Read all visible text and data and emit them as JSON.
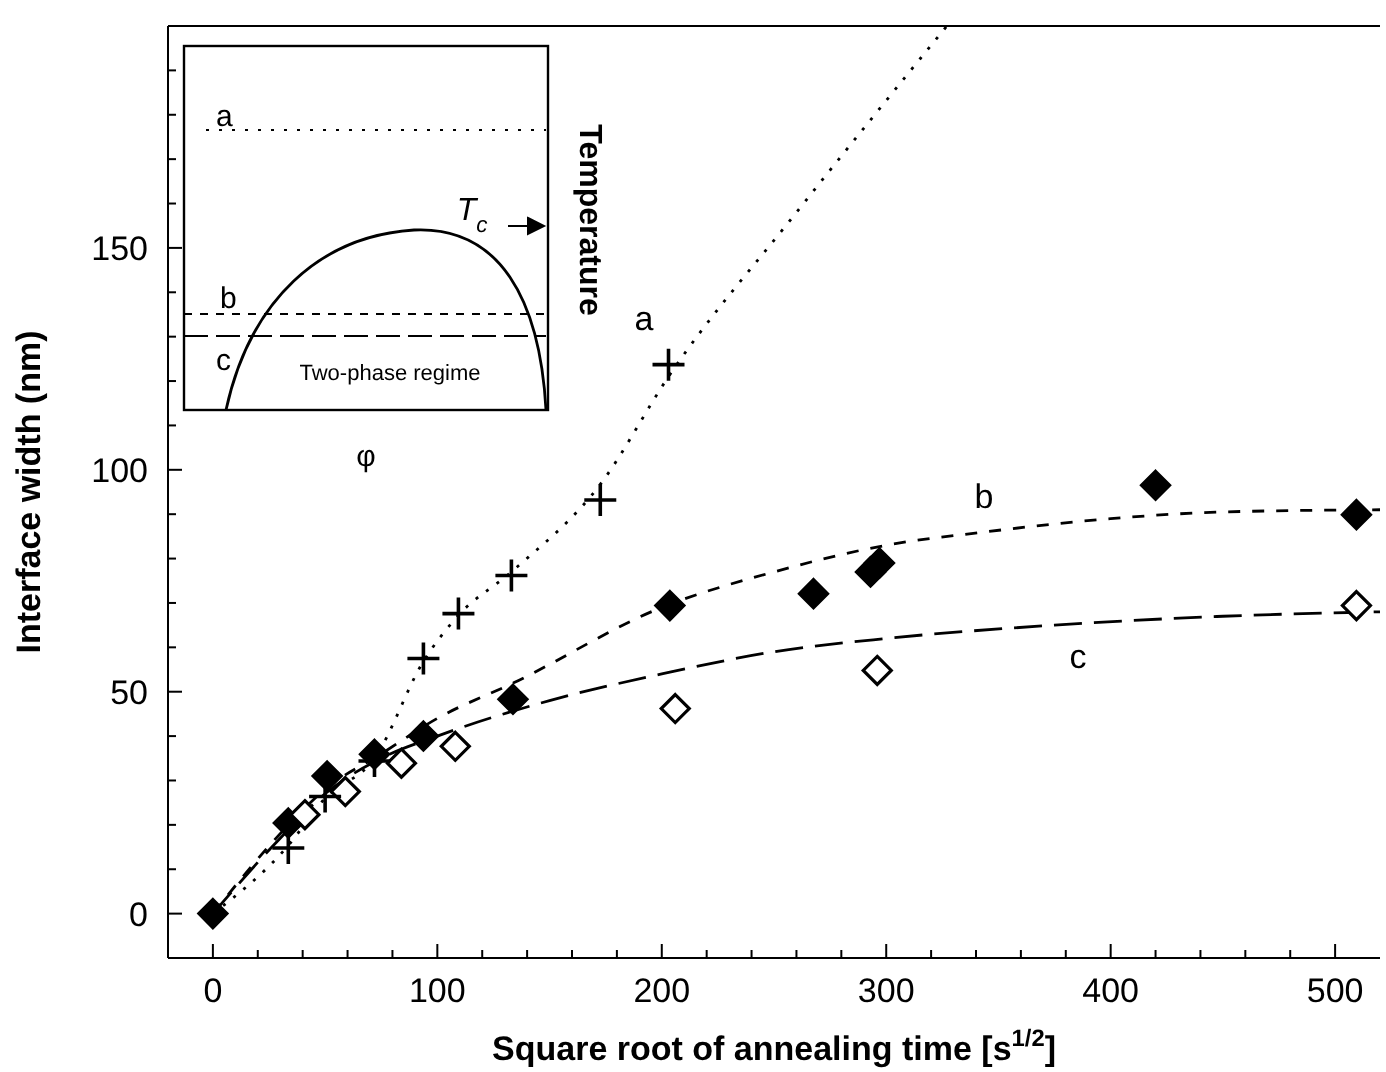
{
  "chart_data": {
    "type": "scatter",
    "xlabel": "Square root of annealing time [s$^{1/2}$]",
    "ylabel": "Interface width (nm)",
    "xlim": [
      -20,
      520
    ],
    "ylim": [
      -10,
      200
    ],
    "xticks": [
      0,
      {
        "value": 20,
        "label": null
      },
      {
        "value": 40,
        "label": null
      },
      {
        "value": 60,
        "label": null
      },
      {
        "value": 80,
        "label": null
      },
      100,
      {
        "value": 120,
        "label": null
      },
      {
        "value": 140,
        "label": null
      },
      {
        "value": 160,
        "label": null
      },
      {
        "value": 180,
        "label": null
      },
      200,
      {
        "value": 220,
        "label": null
      },
      {
        "value": 240,
        "label": null
      },
      {
        "value": 260,
        "label": null
      },
      {
        "value": 280,
        "label": null
      },
      300,
      {
        "value": 320,
        "label": null
      },
      {
        "value": 340,
        "label": null
      },
      {
        "value": 360,
        "label": null
      },
      {
        "value": 380,
        "label": null
      },
      400,
      {
        "value": 420,
        "label": null
      },
      {
        "value": 440,
        "label": null
      },
      {
        "value": 460,
        "label": null
      },
      {
        "value": 480,
        "label": null
      },
      500
    ],
    "yticks": [
      0,
      {
        "value": 10,
        "label": null
      },
      {
        "value": 20,
        "label": null
      },
      {
        "value": 30,
        "label": null
      },
      {
        "value": 40,
        "label": null
      },
      50,
      {
        "value": 60,
        "label": null
      },
      {
        "value": 70,
        "label": null
      },
      {
        "value": 80,
        "label": null
      },
      {
        "value": 90,
        "label": null
      },
      100,
      {
        "value": 110,
        "label": null
      },
      {
        "value": 120,
        "label": null
      },
      {
        "value": 130,
        "label": null
      },
      {
        "value": 140,
        "label": null
      },
      150,
      {
        "value": 160,
        "label": null
      },
      {
        "value": 170,
        "label": null
      },
      {
        "value": 180,
        "label": null
      },
      {
        "value": 190,
        "label": null
      }
    ],
    "grid": false,
    "series": [
      {
        "type": "line",
        "line_style": "dotted",
        "color": "#000000",
        "x": [
          0,
          33,
          50,
          72,
          94,
          109,
          133,
          173,
          203,
          260,
          327
        ],
        "values": [
          0,
          15,
          26,
          35,
          57,
          67,
          77,
          97,
          121,
          158,
          200
        ]
      },
      {
        "type": "line",
        "line_style": "dashed",
        "color": "#000000",
        "x": [
          0,
          30,
          50,
          75,
          100,
          134,
          200,
          250,
          300,
          344,
          400,
          450,
          520
        ],
        "values": [
          0,
          18,
          28,
          36,
          44,
          52,
          69,
          77,
          83,
          86,
          89,
          90.5,
          91
        ]
      },
      {
        "type": "line",
        "line_style": "dashed",
        "color": "#000000",
        "x": [
          0,
          30,
          50,
          75,
          100,
          150,
          200,
          250,
          300,
          375,
          450,
          520
        ],
        "values": [
          0,
          17,
          27,
          35,
          40,
          48,
          54,
          59,
          62,
          65,
          67,
          68
        ]
      },
      {
        "marker": "diamond",
        "color": "#000000",
        "x": [
          0,
          33.6,
          50.9,
          72,
          93.8,
          133.7,
          203.6,
          267.6,
          293,
          297,
          420,
          509.5
        ],
        "values": [
          0,
          20.4,
          31,
          35.9,
          40,
          48.3,
          69.4,
          72.1,
          77,
          79,
          96.5,
          89.9
        ]
      },
      {
        "marker": "diamond",
        "color": "#ffffff",
        "x": [
          41,
          59,
          84,
          108,
          206,
          296,
          509.5
        ],
        "values": [
          22.3,
          27.5,
          33.9,
          37.7,
          46.2,
          54.8,
          69.4
        ]
      },
      {
        "marker": "cross",
        "color": "#000000",
        "x": [
          33.6,
          50,
          72,
          93.8,
          109.4,
          133,
          172.6,
          203
        ],
        "values": [
          14.8,
          26.4,
          34.4,
          57.5,
          67.6,
          76.2,
          93.2,
          123.7
        ]
      }
    ],
    "annotations": [
      "a",
      "b",
      "c",
      "a",
      "b",
      "c",
      "T$_{c}$",
      "Temperature",
      "Two-phase regime",
      "φ"
    ]
  }
}
